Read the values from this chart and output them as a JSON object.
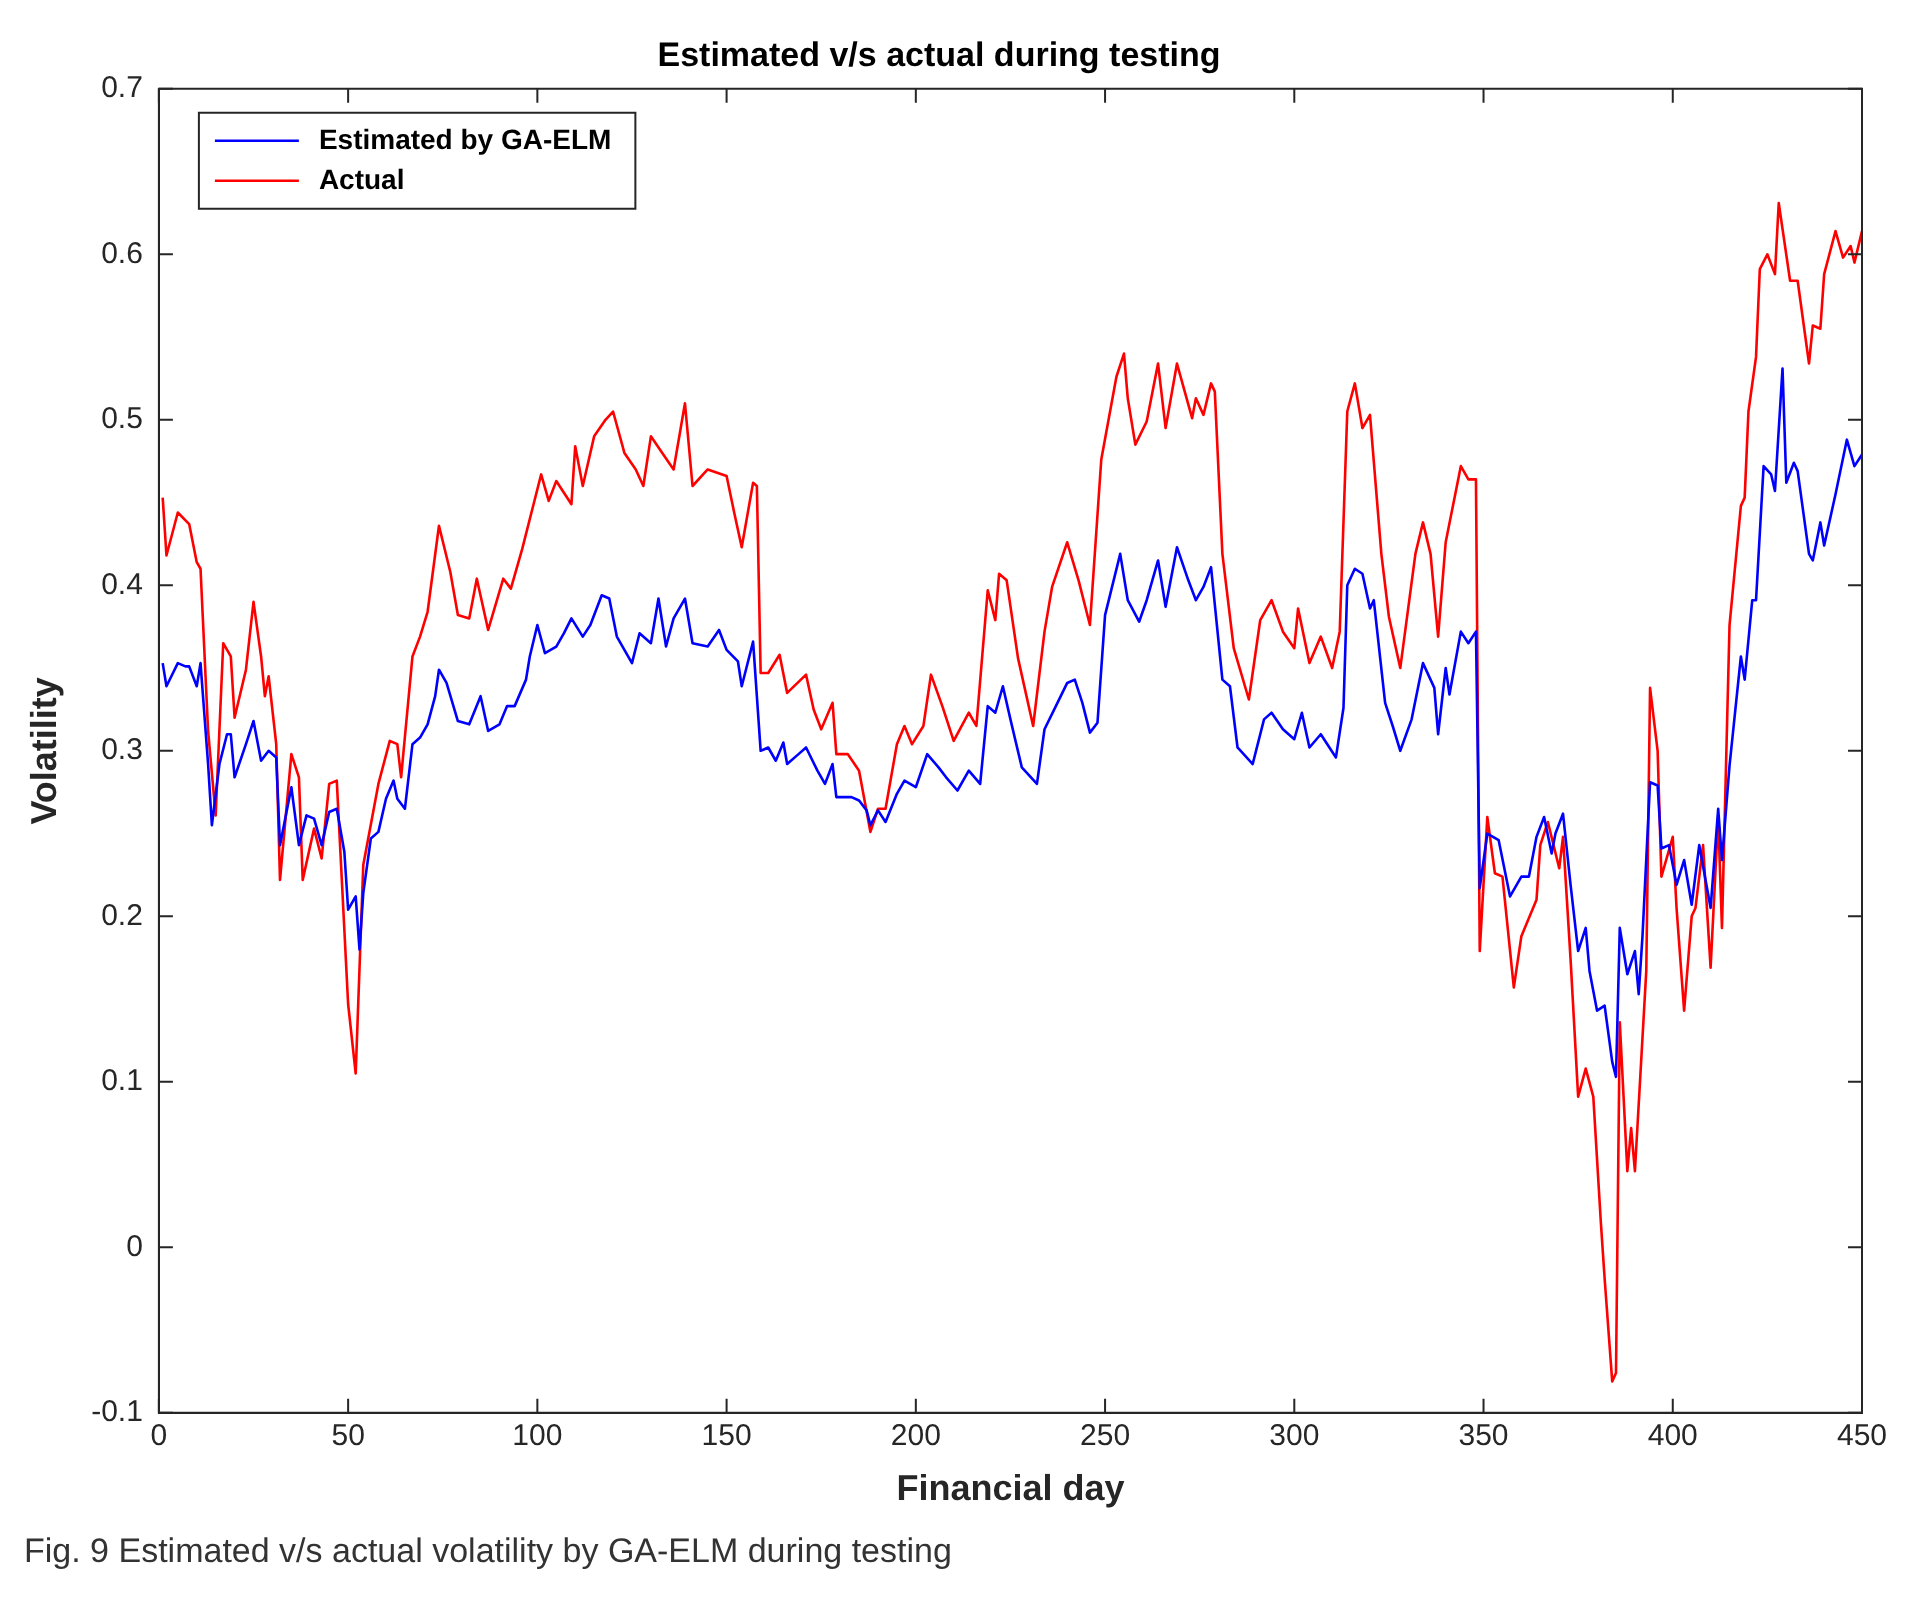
{
  "chart_data": {
    "type": "line",
    "title": "Estimated v/s actual during testing",
    "xlabel": "Financial day",
    "ylabel": "Volatility",
    "xlim": [
      0,
      450
    ],
    "xticks": [
      0,
      50,
      100,
      150,
      200,
      250,
      300,
      350,
      400,
      450
    ],
    "ylim": [
      -0.1,
      0.7
    ],
    "yticks": [
      -0.1,
      0,
      0.1,
      0.2,
      0.3,
      0.4,
      0.5,
      0.6,
      0.7
    ],
    "grid": false,
    "legend": "top left",
    "marker": "none",
    "line_style": "solid",
    "annotations": [
      "Fig. 9 Estimated v/s actual volatility by GA-ELM during testing"
    ],
    "series": [
      {
        "name": "Estimated by GA-ELM",
        "color": "#0000ff",
        "x": [
          1,
          2,
          5,
          7,
          8,
          10,
          11,
          13,
          14,
          16,
          18,
          19,
          20,
          23,
          25,
          27,
          29,
          31,
          32,
          35,
          37,
          39,
          41,
          43,
          45,
          47,
          49,
          50,
          52,
          53,
          54,
          56,
          58,
          60,
          62,
          63,
          65,
          67,
          69,
          71,
          73,
          74,
          76,
          79,
          82,
          85,
          87,
          90,
          92,
          94,
          97,
          98,
          100,
          102,
          105,
          107,
          109,
          112,
          114,
          117,
          119,
          121,
          125,
          127,
          130,
          132,
          134,
          136,
          139,
          141,
          145,
          148,
          150,
          153,
          154,
          157,
          159,
          161,
          163,
          165,
          166,
          169,
          171,
          174,
          176,
          178,
          179,
          183,
          185,
          187,
          188,
          190,
          192,
          195,
          197,
          200,
          203,
          206,
          208,
          211,
          214,
          217,
          219,
          221,
          223,
          225,
          228,
          232,
          234,
          237,
          240,
          242,
          244,
          246,
          248,
          250,
          254,
          256,
          259,
          261,
          264,
          266,
          269,
          272,
          274,
          276,
          278,
          281,
          283,
          285,
          289,
          292,
          294,
          297,
          300,
          302,
          304,
          307,
          311,
          313,
          314,
          316,
          318,
          320,
          321,
          324,
          326,
          328,
          331,
          334,
          337,
          338,
          340,
          341,
          344,
          346,
          348,
          349,
          351,
          354,
          357,
          360,
          362,
          364,
          366,
          368,
          369,
          371,
          373,
          375,
          377,
          378,
          380,
          382,
          384,
          385,
          386,
          388,
          390,
          391,
          392,
          394,
          396,
          397,
          399,
          401,
          403,
          405,
          407,
          410,
          412,
          413,
          415,
          418,
          419,
          421,
          422,
          424,
          426,
          427,
          429,
          430,
          432,
          433,
          436,
          437,
          439,
          440,
          443,
          446,
          448,
          450
        ],
        "values": [
          0.353,
          0.339,
          0.353,
          0.351,
          0.351,
          0.339,
          0.353,
          0.292,
          0.255,
          0.292,
          0.31,
          0.31,
          0.284,
          0.304,
          0.318,
          0.294,
          0.3,
          0.296,
          0.243,
          0.278,
          0.243,
          0.261,
          0.259,
          0.243,
          0.263,
          0.265,
          0.239,
          0.204,
          0.212,
          0.18,
          0.214,
          0.247,
          0.251,
          0.271,
          0.282,
          0.271,
          0.265,
          0.304,
          0.308,
          0.316,
          0.333,
          0.349,
          0.341,
          0.318,
          0.316,
          0.333,
          0.312,
          0.316,
          0.327,
          0.327,
          0.343,
          0.357,
          0.376,
          0.359,
          0.363,
          0.371,
          0.38,
          0.369,
          0.376,
          0.394,
          0.392,
          0.369,
          0.353,
          0.371,
          0.365,
          0.392,
          0.363,
          0.38,
          0.392,
          0.365,
          0.363,
          0.373,
          0.361,
          0.354,
          0.339,
          0.366,
          0.3,
          0.302,
          0.294,
          0.305,
          0.292,
          0.298,
          0.302,
          0.288,
          0.28,
          0.292,
          0.272,
          0.272,
          0.27,
          0.264,
          0.255,
          0.264,
          0.257,
          0.274,
          0.282,
          0.278,
          0.298,
          0.29,
          0.284,
          0.276,
          0.288,
          0.28,
          0.327,
          0.323,
          0.339,
          0.319,
          0.29,
          0.28,
          0.313,
          0.327,
          0.341,
          0.343,
          0.329,
          0.311,
          0.317,
          0.382,
          0.419,
          0.391,
          0.378,
          0.391,
          0.415,
          0.387,
          0.423,
          0.403,
          0.391,
          0.399,
          0.411,
          0.343,
          0.339,
          0.302,
          0.292,
          0.319,
          0.323,
          0.313,
          0.307,
          0.323,
          0.302,
          0.31,
          0.296,
          0.326,
          0.4,
          0.41,
          0.407,
          0.386,
          0.391,
          0.329,
          0.315,
          0.3,
          0.319,
          0.353,
          0.338,
          0.31,
          0.35,
          0.334,
          0.372,
          0.365,
          0.372,
          0.217,
          0.25,
          0.246,
          0.212,
          0.224,
          0.224,
          0.248,
          0.26,
          0.238,
          0.25,
          0.262,
          0.219,
          0.179,
          0.193,
          0.167,
          0.143,
          0.146,
          0.112,
          0.103,
          0.193,
          0.165,
          0.179,
          0.153,
          0.188,
          0.281,
          0.279,
          0.241,
          0.243,
          0.219,
          0.234,
          0.207,
          0.243,
          0.205,
          0.265,
          0.234,
          0.291,
          0.357,
          0.343,
          0.391,
          0.391,
          0.472,
          0.467,
          0.457,
          0.531,
          0.462,
          0.474,
          0.469,
          0.419,
          0.415,
          0.438,
          0.424,
          0.455,
          0.488,
          0.472,
          0.479
        ]
      },
      {
        "name": "Actual",
        "color": "#ff0000",
        "x": [
          1,
          2,
          5,
          8,
          10,
          11,
          13,
          15,
          17,
          19,
          20,
          23,
          25,
          27,
          28,
          29,
          31,
          32,
          35,
          37,
          38,
          41,
          43,
          45,
          47,
          50,
          52,
          54,
          58,
          61,
          63,
          64,
          67,
          69,
          71,
          74,
          77,
          79,
          82,
          84,
          87,
          91,
          93,
          96,
          99,
          101,
          103,
          105,
          109,
          110,
          112,
          115,
          118,
          120,
          123,
          126,
          128,
          130,
          133,
          136,
          139,
          141,
          145,
          150,
          152,
          154,
          157,
          158,
          159,
          161,
          164,
          166,
          171,
          173,
          175,
          178,
          179,
          182,
          185,
          188,
          190,
          192,
          195,
          197,
          199,
          202,
          204,
          207,
          210,
          214,
          216,
          219,
          221,
          222,
          224,
          227,
          231,
          234,
          236,
          240,
          243,
          246,
          249,
          253,
          255,
          256,
          258,
          261,
          264,
          266,
          269,
          273,
          274,
          276,
          278,
          279,
          281,
          284,
          288,
          291,
          294,
          297,
          300,
          301,
          304,
          307,
          310,
          312,
          314,
          316,
          318,
          320,
          323,
          325,
          328,
          332,
          334,
          336,
          338,
          340,
          344,
          346,
          348,
          349,
          351,
          353,
          355,
          358,
          360,
          364,
          365,
          367,
          370,
          371,
          373,
          375,
          377,
          379,
          381,
          382,
          384,
          385,
          386,
          388,
          389,
          390,
          393,
          394,
          396,
          397,
          400,
          401,
          403,
          405,
          406,
          408,
          410,
          412,
          413,
          415,
          418,
          419,
          420,
          422,
          423,
          425,
          427,
          428,
          431,
          433,
          436,
          437,
          439,
          440,
          443,
          445,
          447,
          448,
          450
        ],
        "values": [
          0.453,
          0.418,
          0.444,
          0.437,
          0.414,
          0.41,
          0.312,
          0.261,
          0.365,
          0.357,
          0.32,
          0.349,
          0.39,
          0.357,
          0.333,
          0.345,
          0.304,
          0.222,
          0.298,
          0.284,
          0.222,
          0.253,
          0.235,
          0.28,
          0.282,
          0.147,
          0.105,
          0.231,
          0.28,
          0.306,
          0.304,
          0.284,
          0.357,
          0.369,
          0.384,
          0.436,
          0.408,
          0.382,
          0.38,
          0.404,
          0.373,
          0.404,
          0.398,
          0.422,
          0.449,
          0.467,
          0.451,
          0.463,
          0.449,
          0.484,
          0.46,
          0.49,
          0.5,
          0.505,
          0.48,
          0.47,
          0.46,
          0.49,
          0.48,
          0.47,
          0.51,
          0.46,
          0.47,
          0.466,
          0.444,
          0.423,
          0.462,
          0.46,
          0.347,
          0.347,
          0.358,
          0.335,
          0.346,
          0.325,
          0.313,
          0.329,
          0.298,
          0.298,
          0.288,
          0.251,
          0.265,
          0.265,
          0.304,
          0.315,
          0.304,
          0.315,
          0.346,
          0.327,
          0.306,
          0.323,
          0.315,
          0.397,
          0.379,
          0.407,
          0.403,
          0.356,
          0.315,
          0.372,
          0.399,
          0.426,
          0.403,
          0.376,
          0.476,
          0.526,
          0.54,
          0.513,
          0.485,
          0.499,
          0.534,
          0.495,
          0.534,
          0.501,
          0.513,
          0.503,
          0.522,
          0.517,
          0.419,
          0.362,
          0.331,
          0.379,
          0.391,
          0.372,
          0.362,
          0.386,
          0.353,
          0.369,
          0.35,
          0.372,
          0.505,
          0.522,
          0.495,
          0.503,
          0.419,
          0.381,
          0.35,
          0.419,
          0.438,
          0.419,
          0.369,
          0.426,
          0.472,
          0.464,
          0.464,
          0.179,
          0.26,
          0.226,
          0.224,
          0.157,
          0.188,
          0.21,
          0.243,
          0.257,
          0.229,
          0.248,
          0.174,
          0.091,
          0.108,
          0.091,
          0.015,
          -0.019,
          -0.081,
          -0.076,
          0.136,
          0.046,
          0.072,
          0.046,
          0.167,
          0.338,
          0.3,
          0.224,
          0.248,
          0.205,
          0.143,
          0.2,
          0.205,
          0.243,
          0.169,
          0.26,
          0.193,
          0.376,
          0.448,
          0.453,
          0.505,
          0.538,
          0.591,
          0.6,
          0.588,
          0.631,
          0.584,
          0.584,
          0.534,
          0.557,
          0.555,
          0.588,
          0.614,
          0.598,
          0.605,
          0.595,
          0.614
        ]
      }
    ]
  }
}
